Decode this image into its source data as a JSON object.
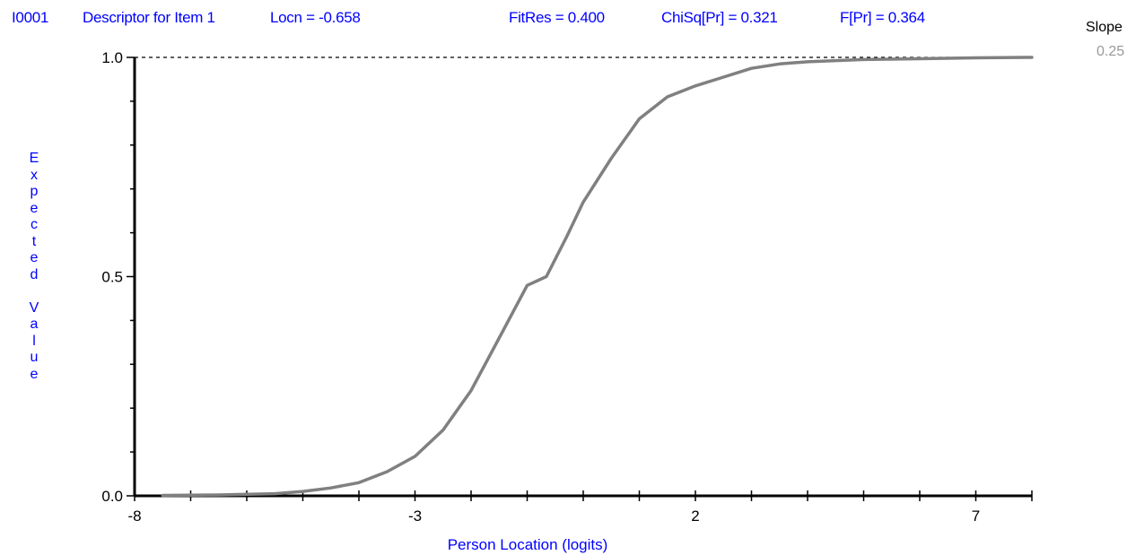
{
  "header": {
    "item_id": "I0001",
    "descriptor": "Descriptor for Item 1",
    "locn": "Locn = -0.658",
    "fitres": "FitRes = 0.400",
    "chisq": "ChiSq[Pr] = 0.321",
    "fpr": "F[Pr] = 0.364"
  },
  "slope": {
    "label": "Slope",
    "value": "0.25"
  },
  "colors": {
    "header_text": "#0000ff",
    "curve": "#808080",
    "axis": "#000000",
    "slope_value": "#999999"
  },
  "chart_data": {
    "type": "line",
    "title": "",
    "xlabel": "Person Location (logits)",
    "ylabel": "Expected Value",
    "xlim": [
      -8,
      8
    ],
    "ylim": [
      0,
      1
    ],
    "x_ticks": [
      -8,
      -3,
      2,
      7
    ],
    "x_tick_labels": [
      "-8",
      "-3",
      "2",
      "7"
    ],
    "y_ticks": [
      0,
      0.5,
      1
    ],
    "y_tick_labels": [
      "0.0",
      "0.5",
      "1.0"
    ],
    "reference_line": {
      "y": 1.0,
      "style": "dashed"
    },
    "grid": false,
    "series": [
      {
        "x": [
          -7.5,
          -6.5,
          -5.5,
          -5.0,
          -4.5,
          -4.0,
          -3.5,
          -3.0,
          -2.5,
          -2.0,
          -1.5,
          -1.0,
          -0.658,
          -0.3,
          0.0,
          0.5,
          1.0,
          1.5,
          2.0,
          2.5,
          3.0,
          3.5,
          4.0,
          5.0,
          6.0,
          7.0,
          8.0
        ],
        "y": [
          0.001,
          0.002,
          0.005,
          0.01,
          0.018,
          0.03,
          0.055,
          0.09,
          0.15,
          0.24,
          0.36,
          0.48,
          0.5,
          0.59,
          0.67,
          0.77,
          0.86,
          0.91,
          0.935,
          0.955,
          0.975,
          0.985,
          0.99,
          0.995,
          0.997,
          0.999,
          1.0
        ]
      }
    ]
  }
}
